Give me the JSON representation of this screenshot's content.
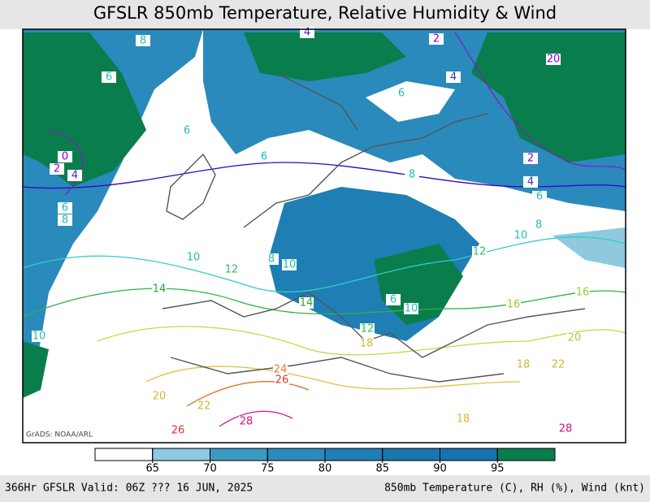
{
  "header": {
    "title": "GFSLR 850mb Temperature, Relative Humidity & Wind"
  },
  "map": {
    "credit": "GrADS: NOAA/ARL",
    "contour_labels": [
      8,
      6,
      4,
      2,
      20,
      4,
      6,
      6,
      0,
      2,
      4,
      6,
      8,
      2,
      4,
      6,
      6,
      8,
      8,
      10,
      10,
      12,
      8,
      10,
      12,
      14,
      14,
      6,
      10,
      16,
      16,
      10,
      12,
      18,
      20,
      22,
      18,
      24,
      26,
      20,
      22,
      28,
      26,
      18,
      28
    ]
  },
  "colorbar": {
    "ticks": [
      65,
      70,
      75,
      80,
      85,
      90,
      95
    ],
    "colors": [
      "#ffffff",
      "#8ec9e0",
      "#3a9ac4",
      "#2a8abb",
      "#1f7eb3",
      "#1a76ad",
      "#1672b0",
      "#0a7d4c"
    ]
  },
  "footer": {
    "left": "366Hr GFSLR Valid: 06Z ??? 16 JUN, 2025",
    "right": "850mb Temperature (C), RH (%), Wind (knt)"
  }
}
